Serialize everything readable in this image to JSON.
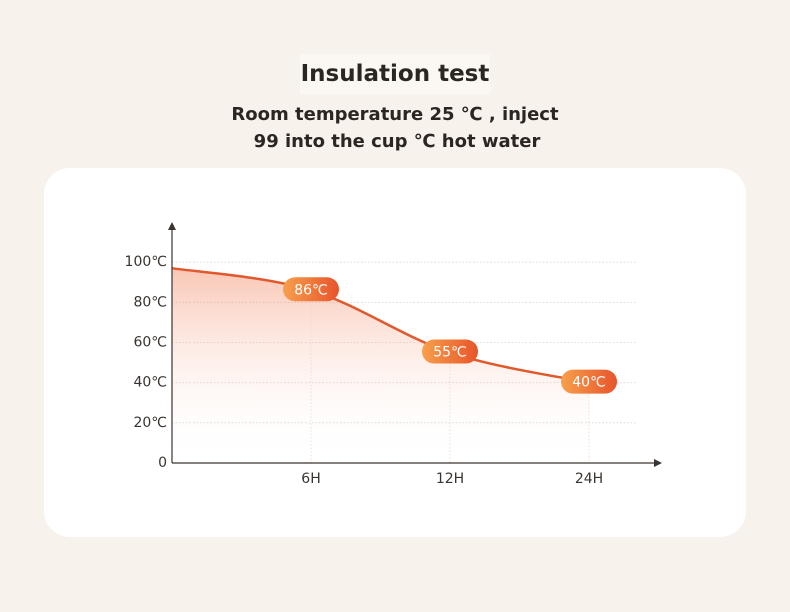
{
  "chart_data": {
    "type": "area-line",
    "title": "Insulation test",
    "subtitle": [
      "Room temperature 25 ℃ , inject",
      "99 into the cup ℃ hot water"
    ],
    "categories": [
      null,
      "6H",
      "12H",
      "24H"
    ],
    "values": [
      97,
      86,
      55,
      40
    ],
    "value_labels": [
      null,
      "86℃",
      "55℃",
      "40℃"
    ],
    "color": "#e0582b",
    "ylim": [
      0,
      120
    ],
    "yticks": [
      0,
      {
        "value": 20,
        "label": "20℃"
      },
      {
        "value": 40,
        "label": "40℃"
      },
      {
        "value": 60,
        "label": "60℃"
      },
      {
        "value": 80,
        "label": "80℃"
      },
      {
        "value": 100,
        "label": "100℃"
      }
    ],
    "grid": true
  }
}
